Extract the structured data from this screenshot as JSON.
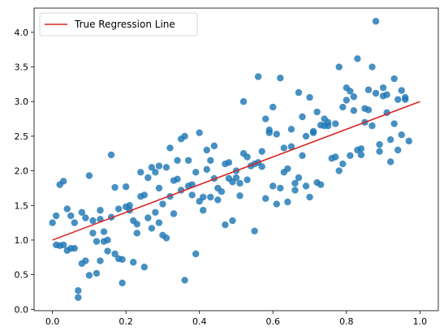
{
  "chart_data": {
    "type": "scatter",
    "xlim": [
      -0.05,
      1.05
    ],
    "ylim": [
      -0.02,
      4.35
    ],
    "xticks": [
      0.0,
      0.2,
      0.4,
      0.6,
      0.8,
      1.0
    ],
    "xtick_labels": [
      "0.0",
      "0.2",
      "0.4",
      "0.6",
      "0.8",
      "1.0"
    ],
    "yticks": [
      0.0,
      0.5,
      1.0,
      1.5,
      2.0,
      2.5,
      3.0,
      3.5,
      4.0
    ],
    "ytick_labels": [
      "0.0",
      "0.5",
      "1.0",
      "1.5",
      "2.0",
      "2.5",
      "3.0",
      "3.5",
      "4.0"
    ],
    "grid": false,
    "legend": {
      "position": "upper-left",
      "entries": [
        "True Regression Line"
      ]
    },
    "colors": {
      "points": "#1f77b4",
      "line": "#d62728"
    },
    "series": [
      {
        "type": "scatter",
        "points": [
          [
            0.0,
            1.25
          ],
          [
            0.01,
            0.93
          ],
          [
            0.01,
            1.35
          ],
          [
            0.02,
            1.8
          ],
          [
            0.02,
            0.92
          ],
          [
            0.03,
            0.93
          ],
          [
            0.03,
            1.85
          ],
          [
            0.04,
            1.45
          ],
          [
            0.04,
            0.85
          ],
          [
            0.05,
            1.35
          ],
          [
            0.05,
            0.88
          ],
          [
            0.06,
            0.88
          ],
          [
            0.06,
            1.25
          ],
          [
            0.07,
            0.17
          ],
          [
            0.07,
            0.27
          ],
          [
            0.08,
            1.4
          ],
          [
            0.08,
            0.66
          ],
          [
            0.09,
            1.32
          ],
          [
            0.09,
            0.7
          ],
          [
            0.1,
            0.49
          ],
          [
            0.1,
            1.93
          ],
          [
            0.11,
            1.28
          ],
          [
            0.11,
            1.1
          ],
          [
            0.12,
            0.52
          ],
          [
            0.12,
            0.98
          ],
          [
            0.13,
            1.3
          ],
          [
            0.13,
            1.43
          ],
          [
            0.13,
            0.7
          ],
          [
            0.14,
            0.98
          ],
          [
            0.14,
            1.12
          ],
          [
            0.15,
            1.0
          ],
          [
            0.15,
            0.84
          ],
          [
            0.16,
            2.23
          ],
          [
            0.16,
            1.33
          ],
          [
            0.17,
            1.76
          ],
          [
            0.17,
            0.8
          ],
          [
            0.18,
            0.73
          ],
          [
            0.18,
            1.45
          ],
          [
            0.19,
            0.38
          ],
          [
            0.19,
            0.72
          ],
          [
            0.2,
            1.48
          ],
          [
            0.2,
            1.77
          ],
          [
            0.21,
            1.5
          ],
          [
            0.21,
            1.43
          ],
          [
            0.22,
            1.28
          ],
          [
            0.22,
            0.68
          ],
          [
            0.23,
            1.1
          ],
          [
            0.23,
            1.23
          ],
          [
            0.24,
            1.98
          ],
          [
            0.24,
            1.63
          ],
          [
            0.25,
            0.61
          ],
          [
            0.25,
            1.65
          ],
          [
            0.26,
            1.9
          ],
          [
            0.26,
            1.32
          ],
          [
            0.27,
            2.05
          ],
          [
            0.27,
            1.17
          ],
          [
            0.28,
            1.4
          ],
          [
            0.28,
            1.98
          ],
          [
            0.29,
            1.75
          ],
          [
            0.29,
            1.25
          ],
          [
            0.29,
            2.07
          ],
          [
            0.3,
            1.52
          ],
          [
            0.3,
            1.07
          ],
          [
            0.31,
            1.03
          ],
          [
            0.31,
            2.05
          ],
          [
            0.32,
            2.33
          ],
          [
            0.32,
            1.63
          ],
          [
            0.33,
            1.86
          ],
          [
            0.33,
            1.38
          ],
          [
            0.34,
            2.15
          ],
          [
            0.34,
            1.88
          ],
          [
            0.35,
            2.46
          ],
          [
            0.35,
            1.72
          ],
          [
            0.36,
            2.5
          ],
          [
            0.36,
            0.42
          ],
          [
            0.37,
            1.78
          ],
          [
            0.37,
            2.15
          ],
          [
            0.38,
            1.65
          ],
          [
            0.38,
            1.8
          ],
          [
            0.39,
            0.8
          ],
          [
            0.39,
            1.98
          ],
          [
            0.4,
            2.55
          ],
          [
            0.4,
            1.56
          ],
          [
            0.41,
            1.43
          ],
          [
            0.41,
            1.62
          ],
          [
            0.42,
            2.02
          ],
          [
            0.42,
            2.3
          ],
          [
            0.43,
            1.62
          ],
          [
            0.43,
            2.15
          ],
          [
            0.44,
            2.36
          ],
          [
            0.44,
            1.89
          ],
          [
            0.45,
            1.75
          ],
          [
            0.45,
            1.58
          ],
          [
            0.46,
            1.7
          ],
          [
            0.47,
            1.22
          ],
          [
            0.47,
            2.1
          ],
          [
            0.48,
            2.12
          ],
          [
            0.48,
            1.89
          ],
          [
            0.49,
            1.28
          ],
          [
            0.49,
            1.84
          ],
          [
            0.5,
            2.0
          ],
          [
            0.5,
            1.9
          ],
          [
            0.51,
            1.64
          ],
          [
            0.51,
            1.82
          ],
          [
            0.52,
            2.25
          ],
          [
            0.52,
            3.0
          ],
          [
            0.53,
            2.2
          ],
          [
            0.53,
            1.87
          ],
          [
            0.54,
            2.07
          ],
          [
            0.55,
            1.13
          ],
          [
            0.55,
            2.1
          ],
          [
            0.56,
            3.36
          ],
          [
            0.56,
            2.12
          ],
          [
            0.57,
            2.06
          ],
          [
            0.57,
            2.28
          ],
          [
            0.58,
            1.6
          ],
          [
            0.58,
            2.75
          ],
          [
            0.59,
            2.55
          ],
          [
            0.59,
            2.59
          ],
          [
            0.6,
            1.78
          ],
          [
            0.6,
            2.92
          ],
          [
            0.61,
            1.52
          ],
          [
            0.61,
            2.53
          ],
          [
            0.62,
            3.34
          ],
          [
            0.62,
            1.75
          ],
          [
            0.63,
            1.98
          ],
          [
            0.63,
            2.33
          ],
          [
            0.64,
            2.03
          ],
          [
            0.64,
            1.55
          ],
          [
            0.65,
            2.35
          ],
          [
            0.65,
            2.6
          ],
          [
            0.66,
            1.72
          ],
          [
            0.66,
            1.82
          ],
          [
            0.67,
            3.13
          ],
          [
            0.67,
            1.9
          ],
          [
            0.68,
            2.22
          ],
          [
            0.68,
            2.78
          ],
          [
            0.69,
            1.78
          ],
          [
            0.69,
            2.5
          ],
          [
            0.7,
            3.06
          ],
          [
            0.7,
            1.62
          ],
          [
            0.71,
            2.55
          ],
          [
            0.71,
            2.57
          ],
          [
            0.72,
            1.83
          ],
          [
            0.72,
            2.85
          ],
          [
            0.73,
            1.8
          ],
          [
            0.73,
            2.66
          ],
          [
            0.74,
            2.75
          ],
          [
            0.74,
            2.65
          ],
          [
            0.75,
            2.65
          ],
          [
            0.75,
            2.7
          ],
          [
            0.76,
            2.18
          ],
          [
            0.77,
            2.68
          ],
          [
            0.77,
            2.2
          ],
          [
            0.78,
            3.5
          ],
          [
            0.78,
            2.0
          ],
          [
            0.79,
            2.1
          ],
          [
            0.79,
            2.92
          ],
          [
            0.8,
            3.02
          ],
          [
            0.8,
            3.2
          ],
          [
            0.81,
            2.22
          ],
          [
            0.81,
            3.15
          ],
          [
            0.82,
            2.87
          ],
          [
            0.82,
            3.07
          ],
          [
            0.83,
            3.62
          ],
          [
            0.83,
            2.3
          ],
          [
            0.84,
            2.23
          ],
          [
            0.84,
            2.32
          ],
          [
            0.85,
            2.7
          ],
          [
            0.85,
            2.9
          ],
          [
            0.86,
            2.88
          ],
          [
            0.86,
            3.17
          ],
          [
            0.87,
            3.5
          ],
          [
            0.87,
            2.65
          ],
          [
            0.88,
            4.16
          ],
          [
            0.88,
            3.12
          ],
          [
            0.89,
            2.28
          ],
          [
            0.89,
            2.38
          ],
          [
            0.9,
            3.08
          ],
          [
            0.9,
            3.2
          ],
          [
            0.91,
            2.84
          ],
          [
            0.91,
            3.1
          ],
          [
            0.92,
            2.45
          ],
          [
            0.92,
            2.13
          ],
          [
            0.93,
            2.68
          ],
          [
            0.93,
            3.33
          ],
          [
            0.94,
            3.03
          ],
          [
            0.94,
            2.3
          ],
          [
            0.95,
            3.16
          ],
          [
            0.95,
            2.52
          ],
          [
            0.96,
            3.03
          ],
          [
            0.96,
            3.06
          ],
          [
            0.97,
            2.43
          ]
        ]
      },
      {
        "type": "line",
        "name": "True Regression Line",
        "x": [
          0.0,
          1.0
        ],
        "y": [
          1.0,
          3.0
        ]
      }
    ]
  }
}
